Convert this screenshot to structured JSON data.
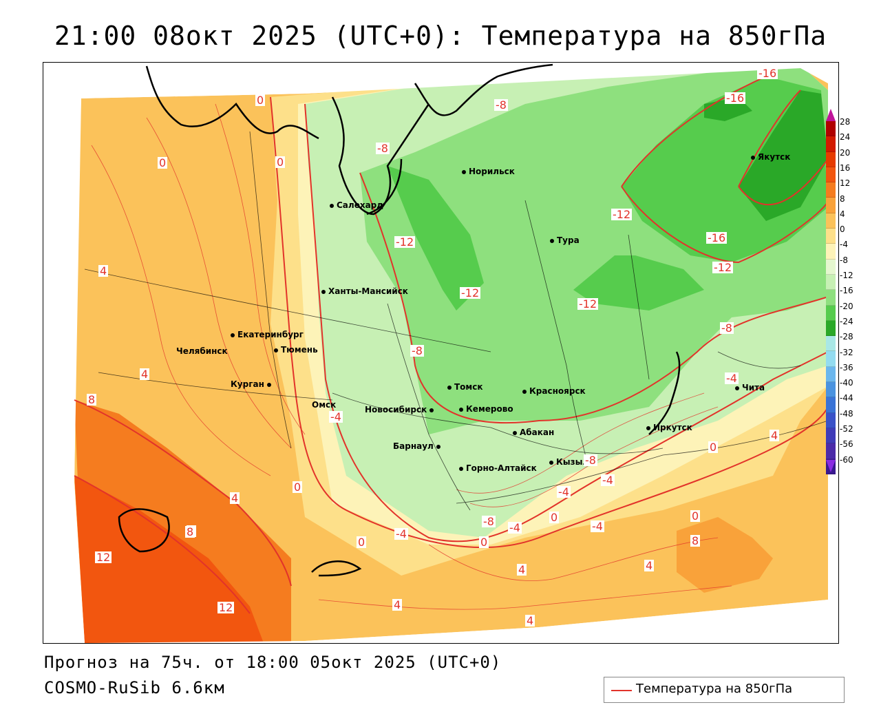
{
  "title": "21:00 08окт 2025 (UTC+0): Температура на 850гПа",
  "footer": {
    "forecast": "Прогноз на 75ч. от 18:00 05окт 2025 (UTC+0)",
    "model": "COSMO-RuSib 6.6км"
  },
  "legend": {
    "series": "Температура на 850гПа",
    "line_color": "#e2332a"
  },
  "scale": {
    "ticks": [
      "28",
      "24",
      "20",
      "16",
      "12",
      "8",
      "4",
      "0",
      "-4",
      "-8",
      "-12",
      "-16",
      "-20",
      "-24",
      "-28",
      "-32",
      "-36",
      "-40",
      "-44",
      "-48",
      "-52",
      "-56",
      "-60"
    ],
    "colors": [
      "#b00000",
      "#d21a00",
      "#e63b00",
      "#f2560f",
      "#f57c1f",
      "#f9a23a",
      "#fbc25a",
      "#fde08a",
      "#fdf3b8",
      "#e5f7cf",
      "#c7f0b4",
      "#8ee07e",
      "#56cc4d",
      "#2aa828",
      "#a9e8e6",
      "#93dcf0",
      "#6bb7ee",
      "#4a93e0",
      "#3a73d6",
      "#3a52c8",
      "#3f3bb8",
      "#4b2aa8",
      "#3a1990"
    ]
  },
  "cities": [
    {
      "name": "Норильск"
    },
    {
      "name": "Салехард"
    },
    {
      "name": "Тура"
    },
    {
      "name": "Якутск"
    },
    {
      "name": "Ханты-Мансийск"
    },
    {
      "name": "Екатеринбург"
    },
    {
      "name": "Тюмень"
    },
    {
      "name": "Челябинск"
    },
    {
      "name": "Курган"
    },
    {
      "name": "Омск"
    },
    {
      "name": "Новосибирск"
    },
    {
      "name": "Томск"
    },
    {
      "name": "Кемерово"
    },
    {
      "name": "Красноярск"
    },
    {
      "name": "Абакан"
    },
    {
      "name": "Барнаул"
    },
    {
      "name": "Горно-Алтайск"
    },
    {
      "name": "Кызыл"
    },
    {
      "name": "Иркутск"
    },
    {
      "name": "Чита"
    }
  ],
  "contour_labels": {
    "l0": "0",
    "l1": "0",
    "l2": "0",
    "l3": "-8",
    "l4": "-8",
    "l5": "-16",
    "l6": "-16",
    "l7": "-12",
    "l8": "-12",
    "l9": "-12",
    "l10": "-16",
    "l11": "-12",
    "l12": "-12",
    "l13": "4",
    "l14": "4",
    "l15": "8",
    "l16": "-8",
    "l17": "-4",
    "l18": "0",
    "l19": "4",
    "l20": "0",
    "l21": "4",
    "l22": "8",
    "l23": "12",
    "l24": "12",
    "l25": "0",
    "l26": "-4",
    "l27": "0",
    "l28": "4",
    "l29": "4",
    "l30": "4",
    "l31": "-4",
    "l32": "-4",
    "l33": "0",
    "l34": "-4",
    "l35": "0",
    "l36": "8",
    "l37": "4",
    "l38": "4",
    "l39": "-8",
    "l40": "-4",
    "l41": "-8",
    "l42": "-4",
    "l43": "-8"
  }
}
